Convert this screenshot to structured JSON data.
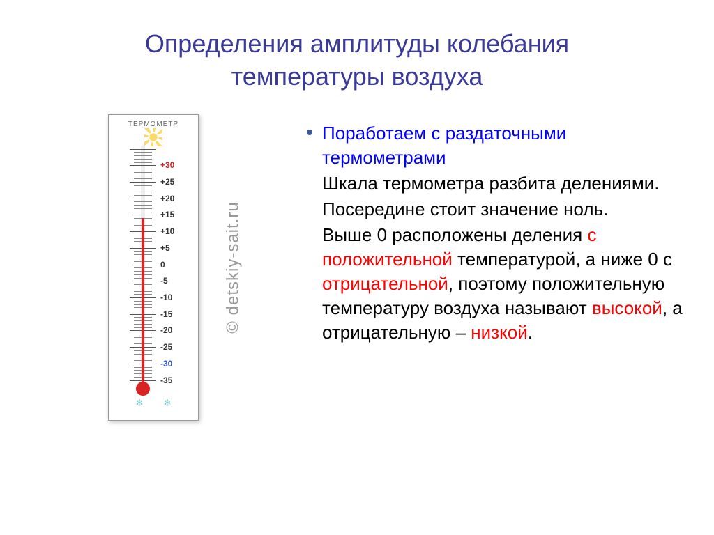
{
  "title_color": "#3a3a99",
  "title_line1": "Определения амплитуды колебания",
  "title_line2": "температуры воздуха",
  "thermometer": {
    "label": "ТЕРМОМЕТР",
    "scale_min": -35,
    "scale_max": 35,
    "major_step": 5,
    "labeled_ticks": [
      {
        "val": 30,
        "text": "+30",
        "color": "#d92323"
      },
      {
        "val": 25,
        "text": "+25",
        "color": "#333333"
      },
      {
        "val": 20,
        "text": "+20",
        "color": "#333333"
      },
      {
        "val": 15,
        "text": "+15",
        "color": "#333333"
      },
      {
        "val": 10,
        "text": "+10",
        "color": "#333333"
      },
      {
        "val": 5,
        "text": "+5",
        "color": "#333333"
      },
      {
        "val": 0,
        "text": "0",
        "color": "#333333"
      },
      {
        "val": -5,
        "text": "-5",
        "color": "#333333"
      },
      {
        "val": -10,
        "text": "-10",
        "color": "#333333"
      },
      {
        "val": -15,
        "text": "-15",
        "color": "#333333"
      },
      {
        "val": -20,
        "text": "-20",
        "color": "#333333"
      },
      {
        "val": -25,
        "text": "-25",
        "color": "#333333"
      },
      {
        "val": -30,
        "text": "-30",
        "color": "#3355cc"
      },
      {
        "val": -35,
        "text": "-35",
        "color": "#333333"
      }
    ],
    "current_value": 14,
    "mercury_color": "#d92323"
  },
  "copyright": "© detskiy-sait.ru",
  "body_text": {
    "color_default": "#000000",
    "color_blue": "#0000ff",
    "color_red": "#ff0000",
    "line1": "Поработаем с раздаточными термометрами",
    "line2a": "Шкала термометра разбита делениями.",
    "line3a": "Посередине стоит значение ноль.",
    "line4_p1": "Выше 0 расположены деления ",
    "line4_p2": "с положительной",
    "line4_p3": " температурой, а ниже 0 с ",
    "line4_p4": "отрицательной",
    "line4_p5": ", поэтому положительную температуру воздуха называют ",
    "line4_p6": "высокой",
    "line4_p7": ", а отрицательную – ",
    "line4_p8": "низкой",
    "line4_p9": "."
  }
}
